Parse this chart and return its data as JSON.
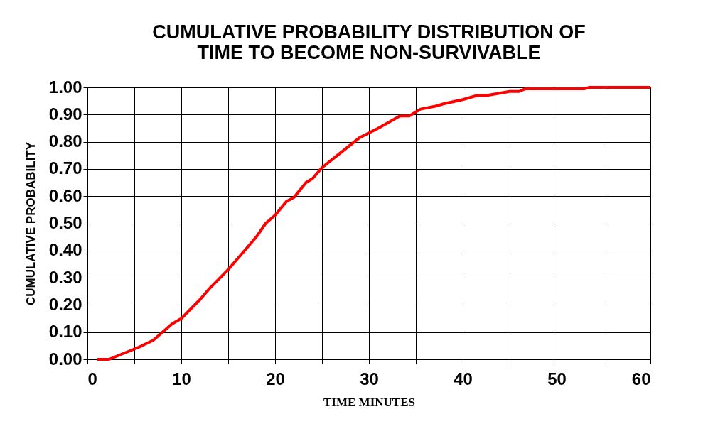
{
  "chart_data": {
    "type": "line",
    "title": [
      "CUMULATIVE PROBABILITY DISTRIBUTION OF",
      "TIME TO BECOME NON-SURVIVABLE"
    ],
    "xlabel": "TIME MINUTES",
    "ylabel": "CUMULATIVE PROBABILITY",
    "x": [
      1,
      2.3,
      5.5,
      7,
      8,
      9,
      10,
      12,
      13,
      15,
      16,
      17,
      17.5,
      18,
      19,
      20,
      21.2,
      22,
      23.3,
      24,
      25,
      27,
      29,
      31,
      33.3,
      34.3,
      35.5,
      37,
      38,
      40,
      41.5,
      42.5,
      45,
      46,
      46.7,
      53,
      53.5,
      60
    ],
    "series": [
      {
        "color": "#ff0000",
        "values": [
          0,
          0,
          0.045,
          0.07,
          0.1,
          0.13,
          0.15,
          0.22,
          0.26,
          0.33,
          0.37,
          0.41,
          0.43,
          0.45,
          0.5,
          0.53,
          0.58,
          0.595,
          0.65,
          0.665,
          0.705,
          0.76,
          0.815,
          0.85,
          0.895,
          0.895,
          0.92,
          0.93,
          0.94,
          0.955,
          0.97,
          0.97,
          0.985,
          0.985,
          0.995,
          0.995,
          1.0,
          1.0
        ]
      }
    ],
    "xlim": [
      0,
      60
    ],
    "ylim": [
      0,
      1
    ],
    "xticks": [
      0,
      {
        "value": 5,
        "label": null
      },
      10,
      {
        "value": 15,
        "label": null
      },
      20,
      {
        "value": 25,
        "label": null
      },
      30,
      {
        "value": 35,
        "label": null
      },
      40,
      {
        "value": 45,
        "label": null
      },
      50,
      {
        "value": 55,
        "label": null
      },
      60
    ],
    "yticks": [
      {
        "value": 0,
        "label": "0.00"
      },
      {
        "value": 0.1,
        "label": "0.10"
      },
      {
        "value": 0.2,
        "label": "0.20"
      },
      {
        "value": 0.3,
        "label": "0.30"
      },
      {
        "value": 0.4,
        "label": "0.40"
      },
      {
        "value": 0.5,
        "label": "0.50"
      },
      {
        "value": 0.6,
        "label": "0.60"
      },
      {
        "value": 0.7,
        "label": "0.70"
      },
      {
        "value": 0.8,
        "label": "0.80"
      },
      {
        "value": 0.9,
        "label": "0.90"
      },
      {
        "value": 1,
        "label": "1.00"
      }
    ],
    "grid": true,
    "legend": false,
    "marker": "none",
    "line_style": "solid"
  }
}
